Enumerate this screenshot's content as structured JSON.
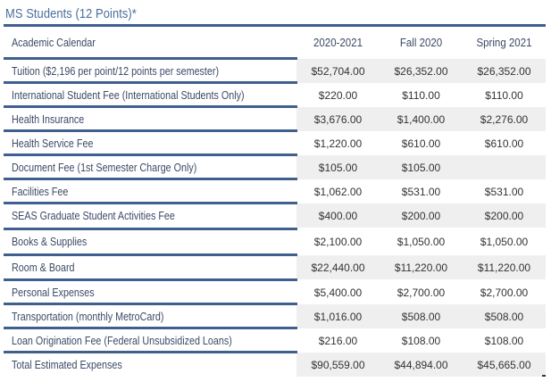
{
  "title": "MS Students (12 Points)*",
  "table": {
    "header": {
      "label": "Academic Calendar",
      "col1": "2020-2021",
      "col2": "Fall 2020",
      "col3": "Spring 2021"
    },
    "rows": [
      {
        "label": "Tuition ($2,196 per point/12 points per semester)",
        "v1": "$52,704.00",
        "v2": "$26,352.00",
        "v3": "$26,352.00",
        "shaded": true
      },
      {
        "label": "International Student Fee (International Students Only)",
        "v1": "$220.00",
        "v2": "$110.00",
        "v3": "$110.00",
        "shaded": false
      },
      {
        "label": "Health Insurance",
        "v1": "$3,676.00",
        "v2": "$1,400.00",
        "v3": "$2,276.00",
        "shaded": true
      },
      {
        "label": "Health Service Fee",
        "v1": "$1,220.00",
        "v2": "$610.00",
        "v3": "$610.00",
        "shaded": false
      },
      {
        "label": "Document Fee (1st Semester Charge Only)",
        "v1": "$105.00",
        "v2": "$105.00",
        "v3": "",
        "shaded": true
      },
      {
        "label": "Facilities Fee",
        "v1": "$1,062.00",
        "v2": "$531.00",
        "v3": "$531.00",
        "shaded": false
      },
      {
        "label": "SEAS Graduate Student Activities Fee",
        "v1": "$400.00",
        "v2": "$200.00",
        "v3": "$200.00",
        "shaded": true
      },
      {
        "label": "Books & Supplies",
        "v1": "$2,100.00",
        "v2": "$1,050.00",
        "v3": "$1,050.00",
        "shaded": false
      },
      {
        "label": "Room & Board",
        "v1": "$22,440.00",
        "v2": "$11,220.00",
        "v3": "$11,220.00",
        "shaded": true
      },
      {
        "label": "Personal Expenses",
        "v1": "$5,400.00",
        "v2": "$2,700.00",
        "v3": "$2,700.00",
        "shaded": false
      },
      {
        "label": "Transportation (monthly MetroCard)",
        "v1": "$1,016.00",
        "v2": "$508.00",
        "v3": "$508.00",
        "shaded": true
      },
      {
        "label": "Loan Origination Fee (Federal Unsubsidized Loans)",
        "v1": "$216.00",
        "v2": "$108.00",
        "v3": "$108.00",
        "shaded": false
      },
      {
        "label": "Total Estimated Expenses",
        "v1": "$90,559.00",
        "v2": "$44,894.00",
        "v3": "$45,665.00",
        "shaded": true
      }
    ]
  }
}
